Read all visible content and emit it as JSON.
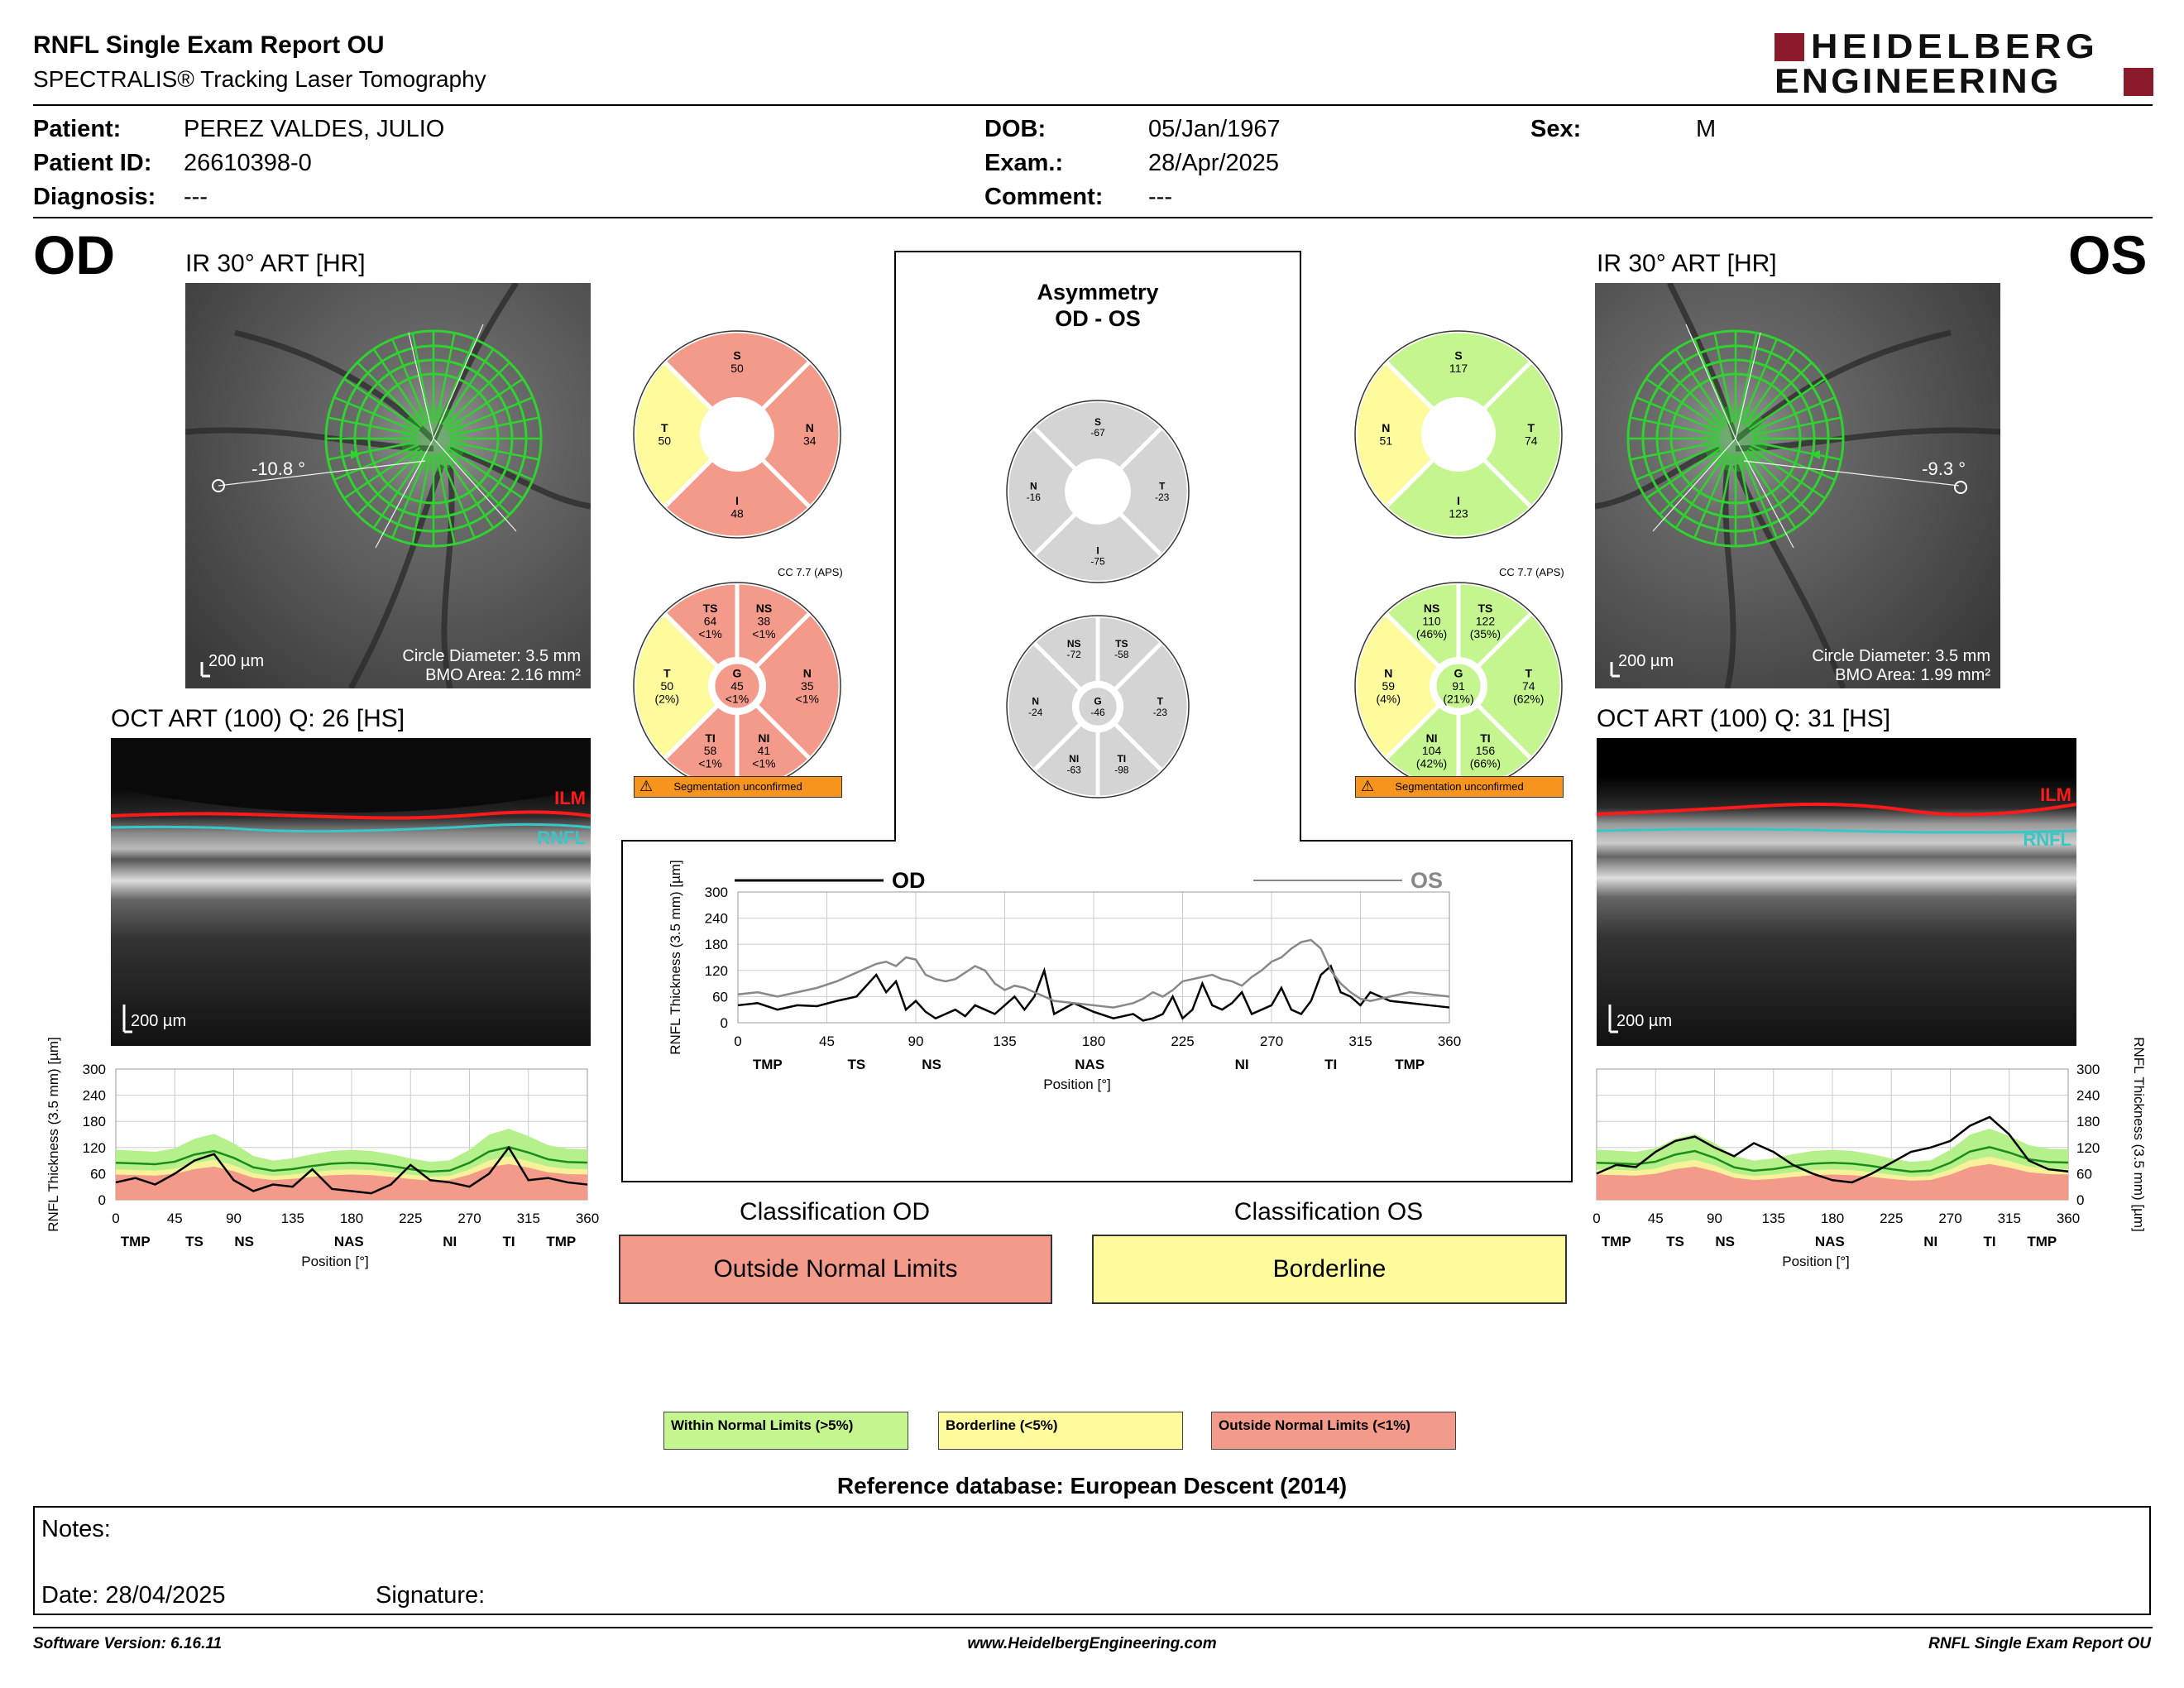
{
  "header": {
    "title": "RNFL Single Exam Report OU",
    "subtitle": "SPECTRALIS® Tracking Laser Tomography",
    "logo_line1": "HEIDELBERG",
    "logo_line2": "ENGINEERING"
  },
  "patient": {
    "name_label": "Patient:",
    "name": "PEREZ VALDES, JULIO",
    "id_label": "Patient ID:",
    "id": "26610398-0",
    "diagnosis_label": "Diagnosis:",
    "diagnosis": "---",
    "dob_label": "DOB:",
    "dob": "05/Jan/1967",
    "exam_label": "Exam.:",
    "exam": "28/Apr/2025",
    "comment_label": "Comment:",
    "comment": "---",
    "sex_label": "Sex:",
    "sex": "M"
  },
  "od": {
    "eye": "OD",
    "fundus_title": "IR 30° ART [HR]",
    "angle": "-10.8 °",
    "scale": "200 µm",
    "circle_diameter": "Circle Diameter: 3.5 mm",
    "bmo_area": "BMO Area: 2.16 mm²",
    "oct_title": "OCT ART (100) Q: 26 [HS]",
    "oct_scale": "200 µm",
    "ilm": "ILM",
    "rnfl": "RNFL",
    "cc": "CC 7.7 (APS)",
    "seg": "Segmentation unconfirmed",
    "quadrants": {
      "S": {
        "label": "S",
        "value": "50",
        "color": "#f39a8a"
      },
      "N": {
        "label": "N",
        "value": "34",
        "color": "#f39a8a"
      },
      "I": {
        "label": "I",
        "value": "48",
        "color": "#f39a8a"
      },
      "T": {
        "label": "T",
        "value": "50",
        "color": "#fdfb9c"
      }
    },
    "sectors": {
      "TS": {
        "label": "TS",
        "value": "64",
        "pct": "<1%",
        "color": "#f39a8a"
      },
      "NS": {
        "label": "NS",
        "value": "38",
        "pct": "<1%",
        "color": "#f39a8a"
      },
      "N": {
        "label": "N",
        "value": "35",
        "pct": "<1%",
        "color": "#f39a8a"
      },
      "NI": {
        "label": "NI",
        "value": "41",
        "pct": "<1%",
        "color": "#f39a8a"
      },
      "TI": {
        "label": "TI",
        "value": "58",
        "pct": "<1%",
        "color": "#f39a8a"
      },
      "T": {
        "label": "T",
        "value": "50",
        "pct": "(2%)",
        "color": "#fdfb9c"
      },
      "G": {
        "label": "G",
        "value": "45",
        "pct": "<1%",
        "color": "#f39a8a"
      }
    },
    "classification_title": "Classification OD",
    "classification": "Outside Normal Limits",
    "classification_color": "#f39a8a"
  },
  "os": {
    "eye": "OS",
    "fundus_title": "IR 30° ART [HR]",
    "angle": "-9.3 °",
    "scale": "200 µm",
    "circle_diameter": "Circle Diameter: 3.5 mm",
    "bmo_area": "BMO Area: 1.99 mm²",
    "oct_title": "OCT ART (100) Q: 31 [HS]",
    "oct_scale": "200 µm",
    "ilm": "ILM",
    "rnfl": "RNFL",
    "cc": "CC 7.7 (APS)",
    "seg": "Segmentation unconfirmed",
    "quadrants": {
      "S": {
        "label": "S",
        "value": "117",
        "color": "#c5f58e"
      },
      "T": {
        "label": "T",
        "value": "74",
        "color": "#c5f58e"
      },
      "I": {
        "label": "I",
        "value": "123",
        "color": "#c5f58e"
      },
      "N": {
        "label": "N",
        "value": "51",
        "color": "#fdfb9c"
      }
    },
    "sectors": {
      "NS": {
        "label": "NS",
        "value": "110",
        "pct": "(46%)",
        "color": "#c5f58e"
      },
      "TS": {
        "label": "TS",
        "value": "122",
        "pct": "(35%)",
        "color": "#c5f58e"
      },
      "T": {
        "label": "T",
        "value": "74",
        "pct": "(62%)",
        "color": "#c5f58e"
      },
      "TI": {
        "label": "TI",
        "value": "156",
        "pct": "(66%)",
        "color": "#c5f58e"
      },
      "NI": {
        "label": "NI",
        "value": "104",
        "pct": "(42%)",
        "color": "#c5f58e"
      },
      "N": {
        "label": "N",
        "value": "59",
        "pct": "(4%)",
        "color": "#fdfb9c"
      },
      "G": {
        "label": "G",
        "value": "91",
        "pct": "(21%)",
        "color": "#c5f58e"
      }
    },
    "classification_title": "Classification OS",
    "classification": "Borderline",
    "classification_color": "#fdfb9c"
  },
  "asym": {
    "title1": "Asymmetry",
    "title2": "OD - OS",
    "quadrants": {
      "S": "-67",
      "N": "-16",
      "T": "-23",
      "I": "-75"
    },
    "sectors": {
      "NS": "-72",
      "TS": "-58",
      "N": "-24",
      "G": "-46",
      "T": "-23",
      "NI": "-63",
      "TI": "-98"
    },
    "color": "#d4d4d4"
  },
  "legend": {
    "wnl": "Within Normal Limits (>5%)",
    "bl": "Borderline (<5%)",
    "onl": "Outside Normal Limits (<1%)",
    "wnl_color": "#c5f58e",
    "bl_color": "#fdfb9c",
    "onl_color": "#f39a8a"
  },
  "reference": "Reference database: European Descent (2014)",
  "notes": {
    "notes_label": "Notes:",
    "date_label": "Date: 28/04/2025",
    "signature_label": "Signature:"
  },
  "footer": {
    "version": "Software Version: 6.16.11",
    "website": "www.HeidelbergEngineering.com",
    "report": "RNFL Single Exam Report OU"
  },
  "chart_data": [
    {
      "type": "line",
      "title": "",
      "xlabel": "Position [°]",
      "ylabel": "RNFL Thickness (3.5 mm) [µm]",
      "xlim": [
        0,
        360
      ],
      "ylim": [
        0,
        300
      ],
      "xticks": [
        "0",
        "45",
        "90",
        "135",
        "180",
        "225",
        "270",
        "315",
        "360"
      ],
      "yticks": [
        "0",
        "60",
        "120",
        "180",
        "240",
        "300"
      ],
      "sector_labels": [
        "TMP",
        "TS",
        "NS",
        "NAS",
        "NI",
        "TI",
        "TMP"
      ],
      "sector_positions": [
        15,
        60,
        98,
        178,
        255,
        300,
        340
      ],
      "x": [
        0,
        10,
        20,
        30,
        40,
        50,
        60,
        70,
        75,
        80,
        85,
        90,
        95,
        100,
        105,
        110,
        115,
        120,
        125,
        130,
        135,
        140,
        145,
        150,
        155,
        160,
        170,
        180,
        190,
        200,
        205,
        210,
        215,
        220,
        225,
        230,
        235,
        240,
        245,
        250,
        255,
        260,
        265,
        270,
        275,
        280,
        285,
        290,
        295,
        300,
        305,
        310,
        315,
        320,
        330,
        340,
        350,
        360
      ],
      "series": [
        {
          "name": "OD",
          "values": [
            40,
            45,
            30,
            40,
            38,
            50,
            60,
            110,
            70,
            95,
            30,
            50,
            25,
            10,
            20,
            30,
            15,
            40,
            30,
            20,
            40,
            60,
            30,
            60,
            120,
            20,
            45,
            25,
            10,
            20,
            5,
            10,
            20,
            60,
            10,
            30,
            90,
            40,
            30,
            45,
            70,
            20,
            30,
            40,
            80,
            30,
            20,
            50,
            110,
            130,
            70,
            60,
            40,
            70,
            50,
            45,
            40,
            35
          ]
        },
        {
          "name": "OS",
          "values": [
            65,
            70,
            60,
            70,
            80,
            95,
            115,
            135,
            140,
            130,
            150,
            145,
            110,
            100,
            95,
            100,
            115,
            130,
            120,
            90,
            75,
            85,
            80,
            70,
            60,
            50,
            45,
            40,
            35,
            45,
            55,
            70,
            60,
            75,
            95,
            100,
            105,
            110,
            100,
            95,
            85,
            105,
            120,
            140,
            150,
            170,
            185,
            190,
            170,
            120,
            90,
            70,
            55,
            50,
            60,
            70,
            65,
            60
          ]
        }
      ]
    },
    {
      "type": "area",
      "title": "",
      "xlabel": "Position [°]",
      "ylabel": "RNFL Thickness (3.5 mm) [µm]",
      "xlim": [
        0,
        360
      ],
      "ylim": [
        0,
        300
      ],
      "xticks": [
        "0",
        "45",
        "90",
        "135",
        "180",
        "225",
        "270",
        "315",
        "360"
      ],
      "yticks": [
        "0",
        "60",
        "120",
        "180",
        "240",
        "300"
      ],
      "sector_labels": [
        "TMP",
        "TS",
        "NS",
        "NAS",
        "NI",
        "TI",
        "TMP"
      ],
      "sector_positions": [
        15,
        60,
        98,
        178,
        255,
        300,
        340
      ],
      "x": [
        0,
        15,
        30,
        45,
        60,
        75,
        90,
        105,
        120,
        135,
        150,
        165,
        180,
        195,
        210,
        225,
        240,
        255,
        270,
        285,
        300,
        315,
        330,
        345,
        360
      ],
      "series": [
        {
          "name": "OD",
          "values": [
            40,
            50,
            35,
            60,
            90,
            105,
            45,
            20,
            35,
            30,
            70,
            25,
            20,
            15,
            35,
            80,
            45,
            40,
            30,
            60,
            120,
            45,
            50,
            40,
            35
          ]
        }
      ]
    },
    {
      "type": "area",
      "title": "",
      "xlabel": "Position [°]",
      "ylabel": "RNFL Thickness (3.5 mm) [µm]",
      "xlim": [
        0,
        360
      ],
      "ylim": [
        0,
        300
      ],
      "xticks": [
        "0",
        "45",
        "90",
        "135",
        "180",
        "225",
        "270",
        "315",
        "360"
      ],
      "yticks": [
        "0",
        "60",
        "120",
        "180",
        "240",
        "300"
      ],
      "sector_labels": [
        "TMP",
        "TS",
        "NS",
        "NAS",
        "NI",
        "TI",
        "TMP"
      ],
      "sector_positions": [
        15,
        60,
        98,
        178,
        255,
        300,
        340
      ],
      "x": [
        0,
        15,
        30,
        45,
        60,
        75,
        90,
        105,
        120,
        135,
        150,
        165,
        180,
        195,
        210,
        225,
        240,
        255,
        270,
        285,
        300,
        315,
        330,
        345,
        360
      ],
      "series": [
        {
          "name": "OS",
          "values": [
            60,
            80,
            75,
            110,
            135,
            145,
            120,
            100,
            130,
            110,
            80,
            60,
            45,
            40,
            60,
            85,
            110,
            120,
            135,
            170,
            190,
            150,
            90,
            70,
            65
          ]
        }
      ]
    }
  ]
}
